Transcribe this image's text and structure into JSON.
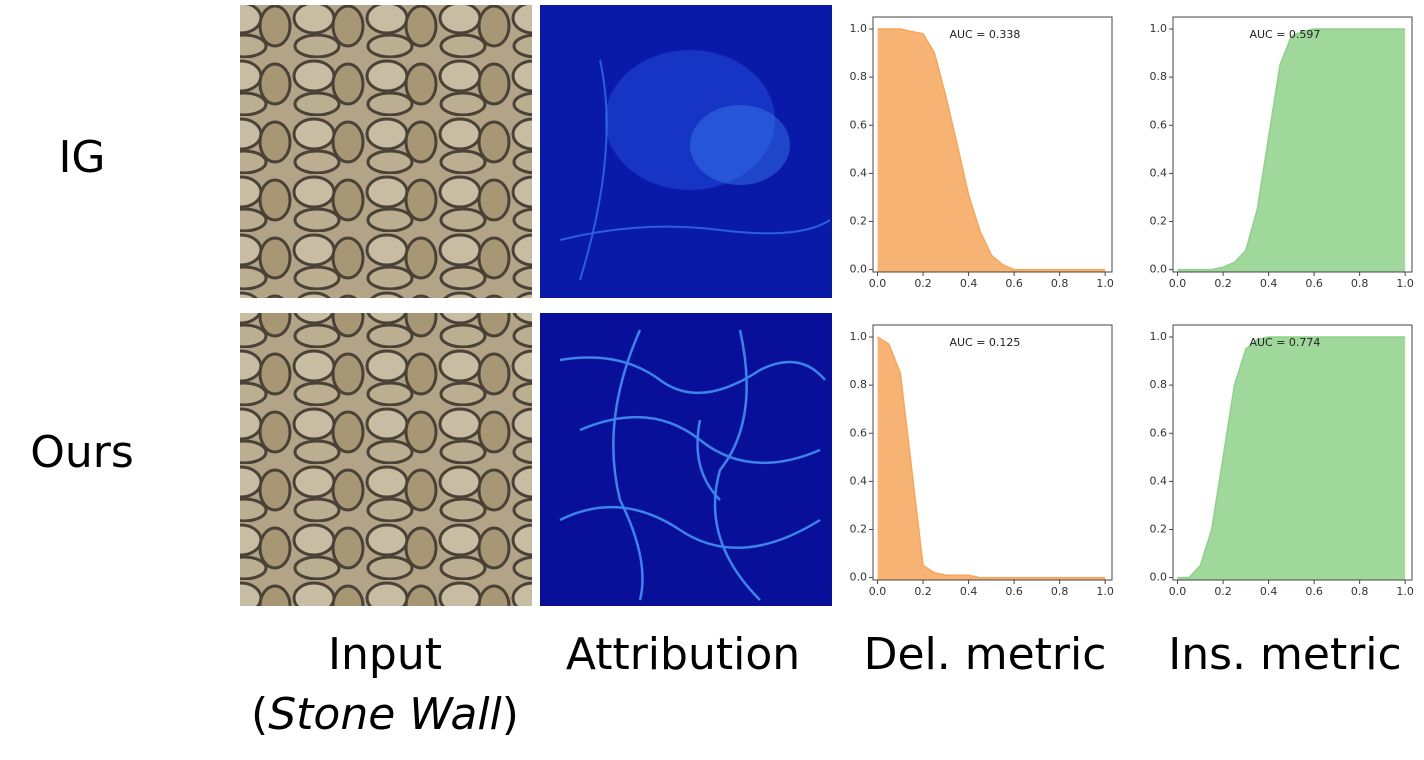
{
  "figure": {
    "row_labels": [
      "IG",
      "Ours"
    ],
    "column_labels": [
      "Input",
      "Attribution",
      "Del. metric",
      "Ins. metric"
    ],
    "input_note": [
      "(",
      "Stone Wall",
      ")"
    ]
  },
  "chart_data": [
    {
      "type": "area",
      "annotation": "AUC = 0.338",
      "color": "#f5a65b",
      "x": [
        0,
        0.05,
        0.1,
        0.15,
        0.2,
        0.25,
        0.3,
        0.35,
        0.4,
        0.45,
        0.5,
        0.55,
        0.6,
        0.65,
        0.7,
        0.75,
        0.8,
        0.85,
        0.9,
        0.95,
        1.0
      ],
      "values": [
        1,
        1,
        1,
        0.99,
        0.98,
        0.9,
        0.72,
        0.52,
        0.31,
        0.16,
        0.06,
        0.02,
        0,
        0,
        0,
        0,
        0,
        0,
        0,
        0,
        0
      ],
      "xlim": [
        -0.02,
        1.03
      ],
      "ylim": [
        -0.01,
        1.05
      ],
      "xticks": [
        {
          "value": 0,
          "label": "0.0"
        },
        {
          "value": 0.2,
          "label": "0.2"
        },
        {
          "value": 0.4,
          "label": "0.4"
        },
        {
          "value": 0.6,
          "label": "0.6"
        },
        {
          "value": 0.8,
          "label": "0.8"
        },
        {
          "value": 1,
          "label": "1.0"
        }
      ],
      "yticks": [
        {
          "value": 0,
          "label": "0.0"
        },
        {
          "value": 0.2,
          "label": "0.2"
        },
        {
          "value": 0.4,
          "label": "0.4"
        },
        {
          "value": 0.6,
          "label": "0.6"
        },
        {
          "value": 0.8,
          "label": "0.8"
        },
        {
          "value": 1,
          "label": "1.0"
        }
      ]
    },
    {
      "type": "area",
      "annotation": "AUC = 0.597",
      "color": "#8fd18a",
      "x": [
        0,
        0.05,
        0.1,
        0.15,
        0.2,
        0.25,
        0.3,
        0.35,
        0.4,
        0.45,
        0.5,
        0.55,
        0.6,
        0.65,
        0.7,
        0.75,
        0.8,
        0.85,
        0.9,
        0.95,
        1.0
      ],
      "values": [
        0,
        0,
        0,
        0,
        0.01,
        0.03,
        0.08,
        0.25,
        0.55,
        0.85,
        0.97,
        0.99,
        1,
        1,
        1,
        1,
        1,
        1,
        1,
        1,
        1
      ],
      "xlim": [
        -0.02,
        1.03
      ],
      "ylim": [
        -0.01,
        1.05
      ],
      "xticks": [
        {
          "value": 0,
          "label": "0.0"
        },
        {
          "value": 0.2,
          "label": "0.2"
        },
        {
          "value": 0.4,
          "label": "0.4"
        },
        {
          "value": 0.6,
          "label": "0.6"
        },
        {
          "value": 0.8,
          "label": "0.8"
        },
        {
          "value": 1,
          "label": "1.0"
        }
      ],
      "yticks": [
        {
          "value": 0,
          "label": "0.0"
        },
        {
          "value": 0.2,
          "label": "0.2"
        },
        {
          "value": 0.4,
          "label": "0.4"
        },
        {
          "value": 0.6,
          "label": "0.6"
        },
        {
          "value": 0.8,
          "label": "0.8"
        },
        {
          "value": 1,
          "label": "1.0"
        }
      ]
    },
    {
      "type": "area",
      "annotation": "AUC = 0.125",
      "color": "#f5a65b",
      "x": [
        0,
        0.05,
        0.1,
        0.15,
        0.2,
        0.25,
        0.3,
        0.35,
        0.4,
        0.45,
        0.5,
        0.55,
        0.6,
        0.65,
        0.7,
        0.75,
        0.8,
        0.85,
        0.9,
        0.95,
        1.0
      ],
      "values": [
        1,
        0.97,
        0.85,
        0.45,
        0.05,
        0.02,
        0.01,
        0.01,
        0.01,
        0,
        0,
        0,
        0,
        0,
        0,
        0,
        0,
        0,
        0,
        0,
        0
      ],
      "xlim": [
        -0.02,
        1.03
      ],
      "ylim": [
        -0.01,
        1.05
      ],
      "xticks": [
        {
          "value": 0,
          "label": "0.0"
        },
        {
          "value": 0.2,
          "label": "0.2"
        },
        {
          "value": 0.4,
          "label": "0.4"
        },
        {
          "value": 0.6,
          "label": "0.6"
        },
        {
          "value": 0.8,
          "label": "0.8"
        },
        {
          "value": 1,
          "label": "1.0"
        }
      ],
      "yticks": [
        {
          "value": 0,
          "label": "0.0"
        },
        {
          "value": 0.2,
          "label": "0.2"
        },
        {
          "value": 0.4,
          "label": "0.4"
        },
        {
          "value": 0.6,
          "label": "0.6"
        },
        {
          "value": 0.8,
          "label": "0.8"
        },
        {
          "value": 1,
          "label": "1.0"
        }
      ]
    },
    {
      "type": "area",
      "annotation": "AUC = 0.774",
      "color": "#8fd18a",
      "x": [
        0,
        0.05,
        0.1,
        0.15,
        0.2,
        0.25,
        0.3,
        0.35,
        0.4,
        0.45,
        0.5,
        0.55,
        0.6,
        0.65,
        0.7,
        0.75,
        0.8,
        0.85,
        0.9,
        0.95,
        1.0
      ],
      "values": [
        0,
        0,
        0.05,
        0.2,
        0.5,
        0.8,
        0.95,
        0.99,
        1,
        1,
        1,
        1,
        1,
        1,
        1,
        1,
        1,
        1,
        1,
        1,
        1
      ],
      "xlim": [
        -0.02,
        1.03
      ],
      "ylim": [
        -0.01,
        1.05
      ],
      "xticks": [
        {
          "value": 0,
          "label": "0.0"
        },
        {
          "value": 0.2,
          "label": "0.2"
        },
        {
          "value": 0.4,
          "label": "0.4"
        },
        {
          "value": 0.6,
          "label": "0.6"
        },
        {
          "value": 0.8,
          "label": "0.8"
        },
        {
          "value": 1,
          "label": "1.0"
        }
      ],
      "yticks": [
        {
          "value": 0,
          "label": "0.0"
        },
        {
          "value": 0.2,
          "label": "0.2"
        },
        {
          "value": 0.4,
          "label": "0.4"
        },
        {
          "value": 0.6,
          "label": "0.6"
        },
        {
          "value": 0.8,
          "label": "0.8"
        },
        {
          "value": 1,
          "label": "1.0"
        }
      ]
    }
  ]
}
